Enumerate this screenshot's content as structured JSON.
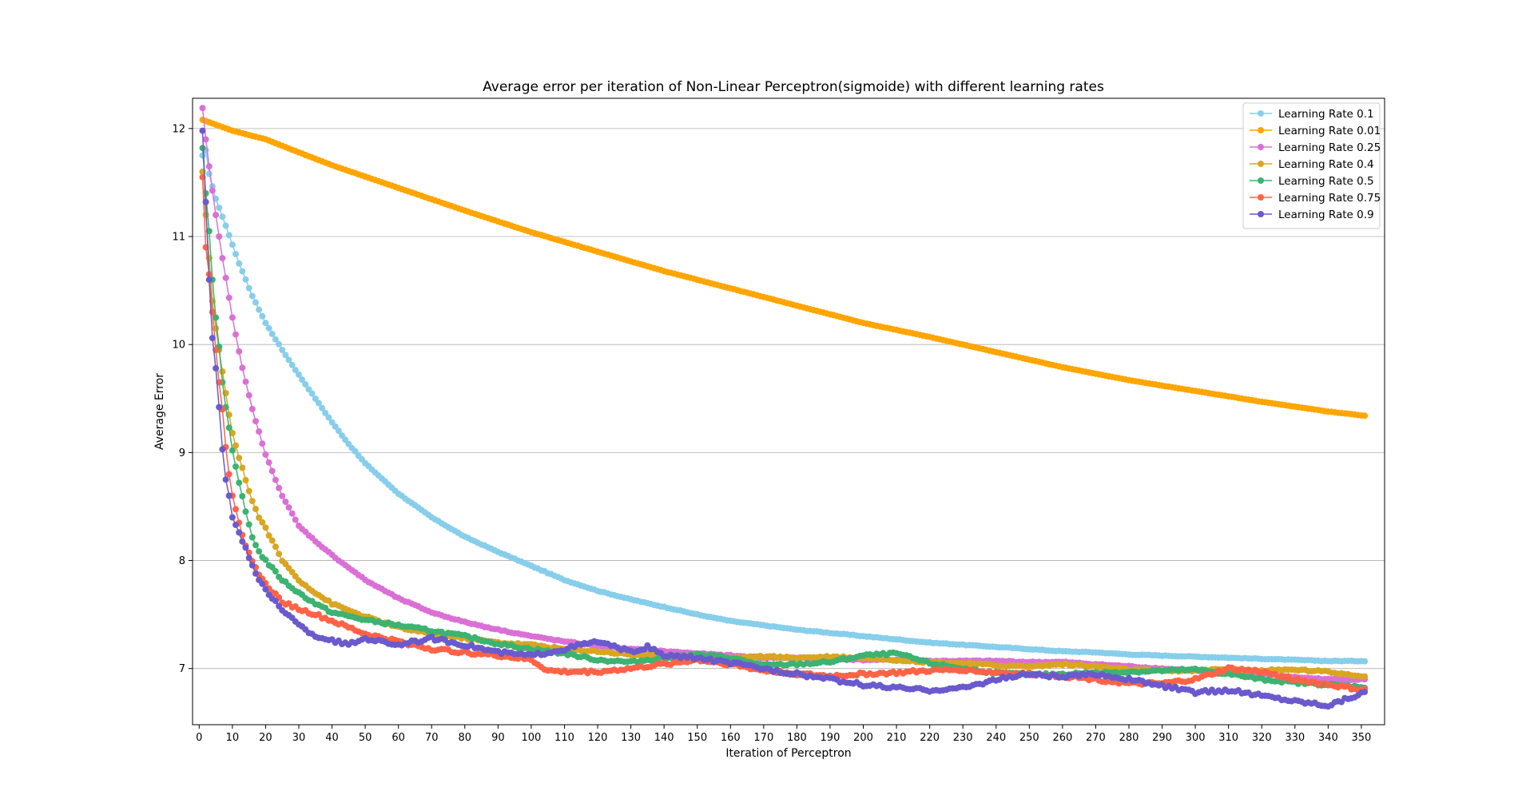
{
  "chart_data": {
    "type": "line",
    "title": "Average error per iteration of Non-Linear Perceptron(sigmoide) with different learning rates",
    "xlabel": "Iteration of Perceptron",
    "ylabel": "Average Error",
    "xlim": [
      -2,
      357
    ],
    "ylim": [
      6.48,
      12.28
    ],
    "x_ticks": [
      0,
      10,
      20,
      30,
      40,
      50,
      60,
      70,
      80,
      90,
      100,
      110,
      120,
      130,
      140,
      150,
      160,
      170,
      180,
      190,
      200,
      210,
      220,
      230,
      240,
      250,
      260,
      270,
      280,
      290,
      300,
      310,
      320,
      330,
      340,
      350
    ],
    "y_ticks": [
      7,
      8,
      9,
      10,
      11,
      12
    ],
    "grid": "horizontal",
    "legend_position": "top-right",
    "x_start": 1,
    "x_end": 351,
    "series": [
      {
        "name": "Learning Rate 0.1",
        "color": "#87CEEB",
        "x": [
          1,
          2,
          3,
          5,
          8,
          12,
          16,
          20,
          25,
          30,
          35,
          40,
          45,
          50,
          60,
          70,
          80,
          90,
          100,
          110,
          120,
          130,
          140,
          150,
          160,
          170,
          180,
          190,
          200,
          210,
          220,
          230,
          240,
          250,
          260,
          270,
          280,
          290,
          300,
          310,
          320,
          330,
          340,
          351
        ],
        "values": [
          11.75,
          11.8,
          11.58,
          11.35,
          11.1,
          10.75,
          10.45,
          10.2,
          9.95,
          9.72,
          9.5,
          9.28,
          9.08,
          8.9,
          8.62,
          8.4,
          8.22,
          8.08,
          7.95,
          7.82,
          7.72,
          7.64,
          7.57,
          7.5,
          7.44,
          7.4,
          7.36,
          7.33,
          7.3,
          7.27,
          7.24,
          7.22,
          7.2,
          7.18,
          7.16,
          7.15,
          7.13,
          7.12,
          7.11,
          7.1,
          7.09,
          7.08,
          7.07,
          7.07
        ]
      },
      {
        "name": "Learning Rate 0.01",
        "color": "#FFA500",
        "x": [
          1,
          10,
          20,
          40,
          60,
          80,
          100,
          120,
          140,
          160,
          180,
          200,
          220,
          240,
          260,
          280,
          300,
          320,
          340,
          351
        ],
        "values": [
          12.08,
          11.98,
          11.9,
          11.66,
          11.45,
          11.24,
          11.04,
          10.86,
          10.68,
          10.52,
          10.36,
          10.2,
          10.07,
          9.93,
          9.79,
          9.67,
          9.57,
          9.47,
          9.38,
          9.34
        ]
      },
      {
        "name": "Learning Rate 0.25",
        "color": "#DA70D6",
        "x": [
          1,
          2,
          3,
          5,
          7,
          10,
          13,
          16,
          20,
          25,
          30,
          35,
          40,
          50,
          60,
          70,
          80,
          90,
          100,
          110,
          120,
          130,
          140,
          150,
          160,
          170,
          180,
          190,
          200,
          210,
          220,
          230,
          240,
          250,
          260,
          270,
          280,
          290,
          300,
          310,
          320,
          330,
          340,
          351
        ],
        "values": [
          12.19,
          11.9,
          11.65,
          11.2,
          10.8,
          10.25,
          9.78,
          9.4,
          8.98,
          8.6,
          8.32,
          8.18,
          8.05,
          7.82,
          7.65,
          7.52,
          7.43,
          7.36,
          7.3,
          7.25,
          7.21,
          7.18,
          7.16,
          7.14,
          7.12,
          7.1,
          7.1,
          7.09,
          7.08,
          7.08,
          7.07,
          7.07,
          7.07,
          7.06,
          7.06,
          7.04,
          7.02,
          7.0,
          6.98,
          6.96,
          6.95,
          6.92,
          6.9,
          6.9
        ]
      },
      {
        "name": "Learning Rate 0.4",
        "color": "#DAA520",
        "x": [
          1,
          2,
          3,
          4,
          5,
          6,
          7,
          8,
          9,
          10,
          12,
          14,
          16,
          18,
          20,
          25,
          30,
          35,
          40,
          50,
          60,
          70,
          80,
          90,
          100,
          110,
          120,
          130,
          140,
          150,
          160,
          170,
          180,
          190,
          200,
          210,
          220,
          230,
          240,
          250,
          260,
          270,
          280,
          290,
          300,
          310,
          320,
          330,
          340,
          351
        ],
        "values": [
          11.6,
          11.2,
          10.8,
          10.4,
          10.15,
          9.95,
          9.75,
          9.55,
          9.35,
          9.18,
          8.95,
          8.75,
          8.55,
          8.4,
          8.3,
          8.0,
          7.82,
          7.7,
          7.6,
          7.48,
          7.38,
          7.32,
          7.28,
          7.24,
          7.22,
          7.18,
          7.16,
          7.13,
          7.12,
          7.11,
          7.1,
          7.11,
          7.1,
          7.11,
          7.1,
          7.08,
          7.06,
          7.05,
          7.03,
          7.02,
          7.04,
          7.02,
          6.99,
          6.98,
          6.98,
          7.0,
          6.98,
          6.99,
          6.97,
          6.93
        ]
      },
      {
        "name": "Learning Rate 0.5",
        "color": "#3CB371",
        "x": [
          1,
          2,
          3,
          4,
          5,
          6,
          7,
          8,
          9,
          10,
          12,
          14,
          16,
          18,
          20,
          25,
          30,
          35,
          40,
          50,
          60,
          70,
          80,
          90,
          100,
          110,
          120,
          130,
          140,
          150,
          160,
          170,
          180,
          190,
          200,
          210,
          220,
          230,
          240,
          250,
          260,
          270,
          280,
          290,
          300,
          310,
          320,
          330,
          340,
          351
        ],
        "values": [
          11.82,
          11.4,
          11.05,
          10.6,
          10.25,
          9.98,
          9.65,
          9.42,
          9.23,
          9.02,
          8.72,
          8.45,
          8.22,
          8.08,
          8.0,
          7.82,
          7.7,
          7.6,
          7.52,
          7.45,
          7.4,
          7.35,
          7.3,
          7.23,
          7.18,
          7.14,
          7.08,
          7.06,
          7.1,
          7.13,
          7.1,
          7.03,
          7.04,
          7.06,
          7.12,
          7.14,
          7.05,
          7.0,
          6.96,
          6.94,
          6.95,
          6.96,
          6.97,
          6.98,
          6.99,
          6.95,
          6.9,
          6.87,
          6.85,
          6.83
        ]
      },
      {
        "name": "Learning Rate 0.75",
        "color": "#FF6347",
        "x": [
          1,
          2,
          3,
          4,
          5,
          6,
          7,
          8,
          9,
          10,
          12,
          14,
          16,
          18,
          20,
          25,
          30,
          35,
          40,
          50,
          60,
          70,
          80,
          90,
          100,
          105,
          110,
          120,
          130,
          140,
          150,
          160,
          170,
          180,
          190,
          200,
          210,
          220,
          230,
          240,
          250,
          260,
          270,
          280,
          290,
          300,
          310,
          320,
          330,
          340,
          351
        ],
        "values": [
          11.55,
          10.9,
          10.65,
          10.3,
          9.95,
          9.65,
          9.4,
          9.05,
          8.8,
          8.6,
          8.35,
          8.15,
          7.98,
          7.88,
          7.78,
          7.62,
          7.55,
          7.5,
          7.44,
          7.32,
          7.25,
          7.18,
          7.15,
          7.12,
          7.08,
          6.98,
          6.97,
          6.97,
          7.0,
          7.04,
          7.08,
          7.04,
          6.98,
          6.95,
          6.93,
          6.95,
          6.96,
          6.98,
          6.99,
          6.96,
          6.95,
          6.93,
          6.9,
          6.86,
          6.86,
          6.9,
          7.0,
          6.97,
          6.9,
          6.85,
          6.8
        ]
      },
      {
        "name": "Learning Rate 0.9",
        "color": "#6A5ACD",
        "x": [
          1,
          2,
          3,
          4,
          5,
          6,
          7,
          8,
          9,
          10,
          12,
          14,
          16,
          18,
          20,
          25,
          30,
          35,
          40,
          45,
          50,
          60,
          70,
          80,
          90,
          100,
          110,
          115,
          120,
          130,
          135,
          140,
          150,
          160,
          170,
          180,
          190,
          200,
          210,
          220,
          230,
          240,
          250,
          260,
          270,
          280,
          290,
          300,
          310,
          320,
          330,
          340,
          351
        ],
        "values": [
          11.98,
          11.32,
          10.6,
          10.06,
          9.78,
          9.42,
          9.03,
          8.75,
          8.6,
          8.4,
          8.26,
          8.12,
          7.95,
          7.82,
          7.72,
          7.55,
          7.4,
          7.3,
          7.26,
          7.22,
          7.28,
          7.22,
          7.28,
          7.22,
          7.15,
          7.12,
          7.18,
          7.22,
          7.25,
          7.15,
          7.2,
          7.12,
          7.1,
          7.05,
          7.0,
          6.95,
          6.9,
          6.85,
          6.82,
          6.8,
          6.82,
          6.9,
          6.95,
          6.92,
          6.95,
          6.9,
          6.84,
          6.78,
          6.8,
          6.75,
          6.7,
          6.66,
          6.78
        ]
      }
    ]
  }
}
